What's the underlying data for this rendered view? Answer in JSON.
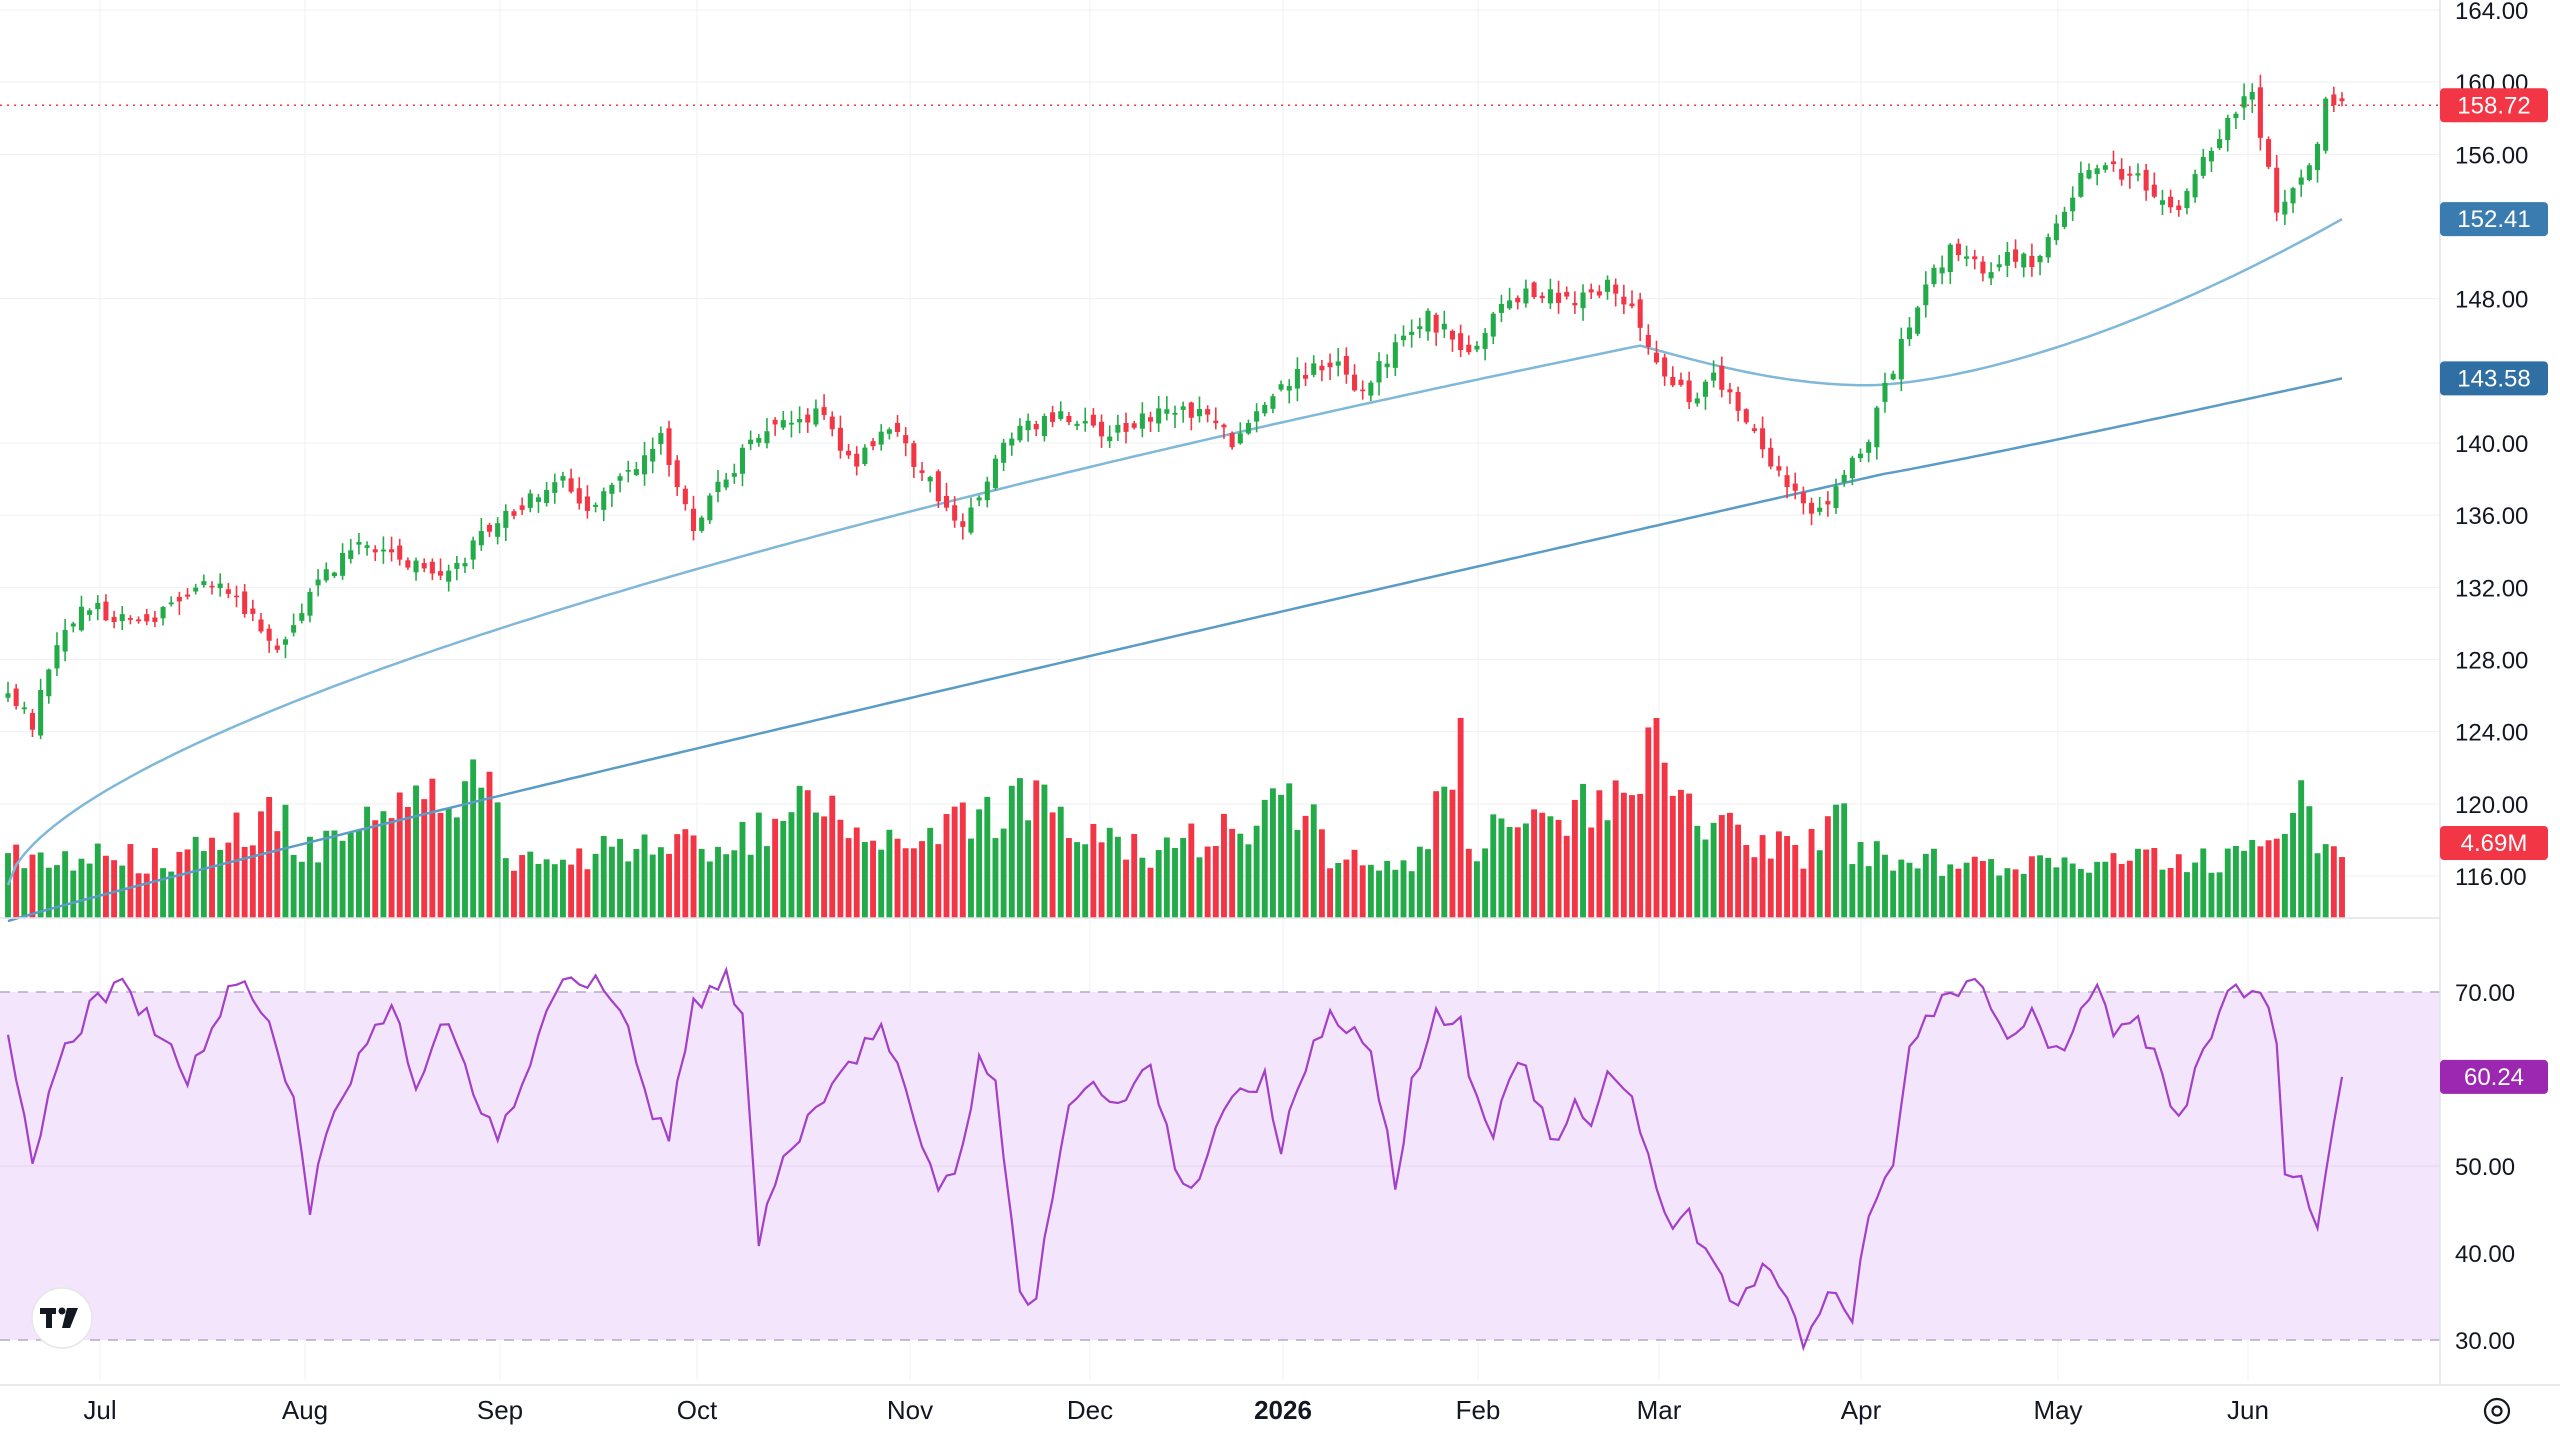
{
  "chart_data": {
    "type": "candlestick",
    "date_range": [
      "2025-06-13",
      "2026-06-12"
    ],
    "price_axis": {
      "ylim": [
        112,
        164
      ],
      "ticks": [
        "164.00",
        "160.00",
        "156.00",
        "148.00",
        "140.00",
        "136.00",
        "132.00",
        "128.00",
        "124.00",
        "120.00",
        "116.00"
      ]
    },
    "rsi_axis": {
      "ylim": [
        28,
        74
      ],
      "ticks": [
        "70.00",
        "50.00",
        "40.00",
        "30.00"
      ],
      "overbought": 70,
      "oversold": 30
    },
    "time_axis_labels": [
      "Jul",
      "Aug",
      "Sep",
      "Oct",
      "Nov",
      "Dec",
      "2026",
      "Feb",
      "Mar",
      "Apr",
      "May",
      "Jun"
    ],
    "last_price": {
      "value": 158.72,
      "label": "158.72",
      "color": "#f23645"
    },
    "ma_fast": {
      "value": 152.41,
      "label": "152.41",
      "color": "#7fb8d8",
      "tag_color": "#3a7bb0"
    },
    "ma_slow": {
      "value": 143.58,
      "label": "143.58",
      "color": "#5a9cc6",
      "tag_color": "#2f6fa3"
    },
    "last_volume": {
      "label": "4.69M",
      "color": "#f23645"
    },
    "last_rsi": {
      "value": 60.24,
      "label": "60.24",
      "color": "#9c27b0"
    },
    "colors": {
      "up": "#22ab48",
      "down": "#f23645",
      "rsi_line": "#a43fc9",
      "rsi_band": "#f3e5fc",
      "grid": "#eef0f3"
    },
    "anchors_close": [
      [
        0,
        126.5
      ],
      [
        3,
        124.3
      ],
      [
        6,
        129
      ],
      [
        10,
        131
      ],
      [
        14,
        130.2
      ],
      [
        19,
        130.6
      ],
      [
        24,
        132.4
      ],
      [
        28,
        131.2
      ],
      [
        33,
        128.6
      ],
      [
        38,
        132.5
      ],
      [
        44,
        134.5
      ],
      [
        50,
        133.2
      ],
      [
        54,
        132.6
      ],
      [
        58,
        134.8
      ],
      [
        63,
        136.5
      ],
      [
        68,
        137.8
      ],
      [
        71,
        136.2
      ],
      [
        76,
        138.4
      ],
      [
        80,
        140.2
      ],
      [
        84,
        135.5
      ],
      [
        87,
        137.5
      ],
      [
        92,
        140.5
      ],
      [
        99,
        141.7
      ],
      [
        104,
        138.9
      ],
      [
        108,
        141.2
      ],
      [
        114,
        137
      ],
      [
        117,
        135.5
      ],
      [
        123,
        140.4
      ],
      [
        128,
        141.6
      ],
      [
        135,
        140.6
      ],
      [
        139,
        141.5
      ],
      [
        144,
        142.1
      ],
      [
        150,
        140.2
      ],
      [
        154,
        141.8
      ],
      [
        157,
        143.5
      ],
      [
        162,
        144.6
      ],
      [
        166,
        142.8
      ],
      [
        169,
        144.8
      ],
      [
        174,
        146.9
      ],
      [
        179,
        145.1
      ],
      [
        183,
        147.6
      ],
      [
        187,
        148.4
      ],
      [
        192,
        147.7
      ],
      [
        196,
        148.6
      ],
      [
        199,
        147.2
      ],
      [
        202,
        144.8
      ],
      [
        206,
        142.1
      ],
      [
        209,
        143.5
      ],
      [
        213,
        141.5
      ],
      [
        218,
        137.3
      ],
      [
        222,
        136.2
      ],
      [
        225,
        138.5
      ],
      [
        228,
        140.3
      ],
      [
        231,
        144.2
      ],
      [
        235,
        148.9
      ],
      [
        238,
        150.7
      ],
      [
        242,
        149.6
      ],
      [
        245,
        150.4
      ],
      [
        248,
        149.9
      ],
      [
        251,
        152.2
      ],
      [
        254,
        154.9
      ],
      [
        258,
        155.2
      ],
      [
        262,
        154.3
      ],
      [
        266,
        153.2
      ],
      [
        269,
        155.8
      ],
      [
        272,
        157.9
      ],
      [
        275,
        159.3
      ],
      [
        278,
        153.2
      ],
      [
        281,
        154.9
      ],
      [
        283,
        156.3
      ],
      [
        284,
        158.72
      ]
    ],
    "anchors_volume_m": [
      [
        0,
        4.8
      ],
      [
        20,
        4.5
      ],
      [
        34,
        8
      ],
      [
        35,
        4.6
      ],
      [
        60,
        11
      ],
      [
        61,
        4.4
      ],
      [
        90,
        6
      ],
      [
        97,
        9
      ],
      [
        110,
        5.5
      ],
      [
        125,
        9
      ],
      [
        140,
        5
      ],
      [
        160,
        9
      ],
      [
        162,
        5
      ],
      [
        173,
        4.5
      ],
      [
        178,
        13
      ],
      [
        179,
        5
      ],
      [
        184,
        7.5
      ],
      [
        200,
        9
      ],
      [
        202,
        15
      ],
      [
        204,
        9
      ],
      [
        210,
        7
      ],
      [
        220,
        5
      ],
      [
        225,
        9
      ],
      [
        226,
        5
      ],
      [
        240,
        4
      ],
      [
        260,
        4.3
      ],
      [
        270,
        4.5
      ],
      [
        278,
        5
      ],
      [
        282,
        10
      ],
      [
        283,
        4.69
      ]
    ],
    "anchors_rsi": [
      [
        0,
        64
      ],
      [
        3,
        51
      ],
      [
        6,
        62
      ],
      [
        10,
        68
      ],
      [
        14,
        71
      ],
      [
        18,
        66
      ],
      [
        22,
        60
      ],
      [
        28,
        72
      ],
      [
        32,
        66
      ],
      [
        35,
        57
      ],
      [
        37,
        45
      ],
      [
        40,
        57
      ],
      [
        44,
        64
      ],
      [
        47,
        68
      ],
      [
        50,
        60
      ],
      [
        54,
        67
      ],
      [
        57,
        58
      ],
      [
        60,
        53
      ],
      [
        64,
        62
      ],
      [
        67,
        70
      ],
      [
        70,
        72
      ],
      [
        73,
        70
      ],
      [
        76,
        65
      ],
      [
        79,
        55
      ],
      [
        81,
        54
      ],
      [
        84,
        68
      ],
      [
        88,
        72
      ],
      [
        90,
        67
      ],
      [
        92,
        41
      ],
      [
        95,
        52
      ],
      [
        99,
        56
      ],
      [
        104,
        63
      ],
      [
        107,
        66
      ],
      [
        111,
        56
      ],
      [
        114,
        48
      ],
      [
        116,
        49
      ],
      [
        119,
        62
      ],
      [
        121,
        60
      ],
      [
        124,
        36
      ],
      [
        126,
        34
      ],
      [
        128,
        47
      ],
      [
        130,
        56
      ],
      [
        133,
        59
      ],
      [
        136,
        56
      ],
      [
        140,
        62
      ],
      [
        143,
        50
      ],
      [
        145,
        47
      ],
      [
        147,
        52
      ],
      [
        150,
        58
      ],
      [
        154,
        60
      ],
      [
        156,
        52
      ],
      [
        159,
        62
      ],
      [
        162,
        67
      ],
      [
        164,
        66
      ],
      [
        167,
        64
      ],
      [
        170,
        48
      ],
      [
        172,
        59
      ],
      [
        175,
        67
      ],
      [
        178,
        66
      ],
      [
        180,
        57
      ],
      [
        182,
        53
      ],
      [
        185,
        63
      ],
      [
        187,
        58
      ],
      [
        190,
        52
      ],
      [
        192,
        57
      ],
      [
        194,
        54
      ],
      [
        196,
        60
      ],
      [
        199,
        57
      ],
      [
        202,
        47
      ],
      [
        204,
        42
      ],
      [
        206,
        44
      ],
      [
        209,
        38
      ],
      [
        212,
        33
      ],
      [
        215,
        39
      ],
      [
        218,
        35
      ],
      [
        220,
        30
      ],
      [
        223,
        36
      ],
      [
        226,
        32
      ],
      [
        228,
        45
      ],
      [
        231,
        51
      ],
      [
        233,
        64
      ],
      [
        236,
        68
      ],
      [
        239,
        70
      ],
      [
        242,
        71
      ],
      [
        245,
        65
      ],
      [
        248,
        67
      ],
      [
        251,
        63
      ],
      [
        254,
        67
      ],
      [
        256,
        71
      ],
      [
        258,
        66
      ],
      [
        261,
        66
      ],
      [
        264,
        61
      ],
      [
        266,
        55
      ],
      [
        269,
        63
      ],
      [
        272,
        69
      ],
      [
        275,
        71
      ],
      [
        278,
        65
      ],
      [
        279,
        48
      ],
      [
        281,
        49
      ],
      [
        283,
        42
      ],
      [
        285,
        54
      ],
      [
        286,
        60.24
      ]
    ]
  }
}
